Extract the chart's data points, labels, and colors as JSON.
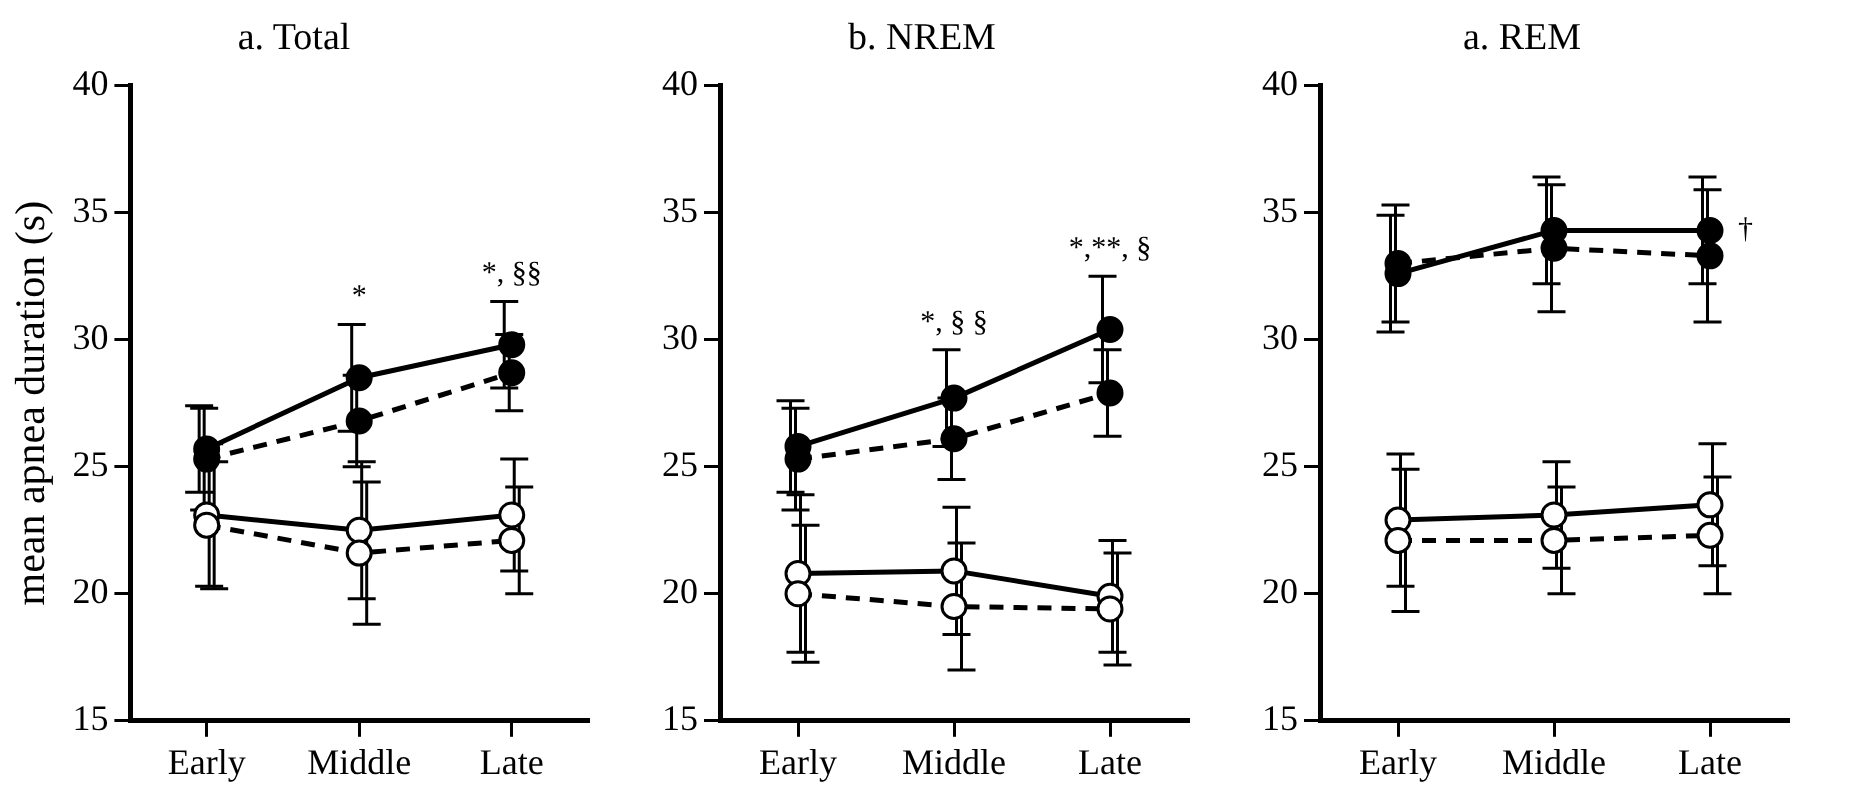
{
  "chart_data": [
    {
      "type": "line",
      "title": "a. Total",
      "ylabel": "mean apnea duration (s)",
      "categories": [
        "Early",
        "Middle",
        "Late"
      ],
      "ylim": [
        15,
        40
      ],
      "yticks": [
        15,
        20,
        25,
        30,
        35,
        40
      ],
      "grid": false,
      "legend": false,
      "marker": "circle",
      "series": [
        {
          "color": "#000000",
          "line_style": "solid",
          "values": [
            25.7,
            28.5,
            29.8
          ],
          "errors": [
            1.7,
            2.1,
            1.7
          ]
        },
        {
          "color": "#000000",
          "line_style": "dashed",
          "values": [
            25.3,
            26.8,
            28.7
          ],
          "errors": [
            2.0,
            1.8,
            1.5
          ]
        },
        {
          "color": "#000000",
          "line_style": "solid",
          "values": [
            23.1,
            22.5,
            23.1
          ],
          "errors": [
            2.8,
            2.7,
            2.2
          ]
        },
        {
          "color": "#000000",
          "line_style": "dashed",
          "values": [
            22.7,
            21.6,
            22.1
          ],
          "errors": [
            2.5,
            2.8,
            2.1
          ]
        }
      ],
      "annotations": [
        "*",
        "*, §§"
      ]
    },
    {
      "type": "line",
      "title": "b. NREM",
      "categories": [
        "Early",
        "Middle",
        "Late"
      ],
      "ylim": [
        15,
        40
      ],
      "yticks": [
        15,
        20,
        25,
        30,
        35,
        40
      ],
      "grid": false,
      "legend": false,
      "marker": "circle",
      "series": [
        {
          "color": "#000000",
          "line_style": "solid",
          "values": [
            25.8,
            27.7,
            30.4
          ],
          "errors": [
            1.8,
            1.9,
            2.1
          ]
        },
        {
          "color": "#000000",
          "line_style": "dashed",
          "values": [
            25.3,
            26.1,
            27.9
          ],
          "errors": [
            2.0,
            1.6,
            1.7
          ]
        },
        {
          "color": "#000000",
          "line_style": "solid",
          "values": [
            20.8,
            20.9,
            19.9
          ],
          "errors": [
            3.1,
            2.5,
            2.2
          ]
        },
        {
          "color": "#000000",
          "line_style": "dashed",
          "values": [
            20.0,
            19.5,
            19.4
          ],
          "errors": [
            2.7,
            2.5,
            2.2
          ]
        }
      ],
      "annotations": [
        "*, § §",
        "*,**, §"
      ]
    },
    {
      "type": "line",
      "title": "a. REM",
      "categories": [
        "Early",
        "Middle",
        "Late"
      ],
      "ylim": [
        15,
        40
      ],
      "yticks": [
        15,
        20,
        25,
        30,
        35,
        40
      ],
      "grid": false,
      "legend": false,
      "marker": "circle",
      "series": [
        {
          "color": "#000000",
          "line_style": "solid",
          "values": [
            32.6,
            34.3,
            34.3
          ],
          "errors": [
            2.3,
            2.1,
            2.1
          ]
        },
        {
          "color": "#000000",
          "line_style": "dashed",
          "values": [
            33.0,
            33.6,
            33.3
          ],
          "errors": [
            2.3,
            2.5,
            2.6
          ]
        },
        {
          "color": "#000000",
          "line_style": "solid",
          "values": [
            22.9,
            23.1,
            23.5
          ],
          "errors": [
            2.6,
            2.1,
            2.4
          ]
        },
        {
          "color": "#000000",
          "line_style": "dashed",
          "values": [
            22.1,
            22.1,
            22.3
          ],
          "errors": [
            2.8,
            2.1,
            2.3
          ]
        }
      ],
      "annotations": [
        {
          "text": "†",
          "x": "Late",
          "y": 34.3
        }
      ]
    }
  ]
}
